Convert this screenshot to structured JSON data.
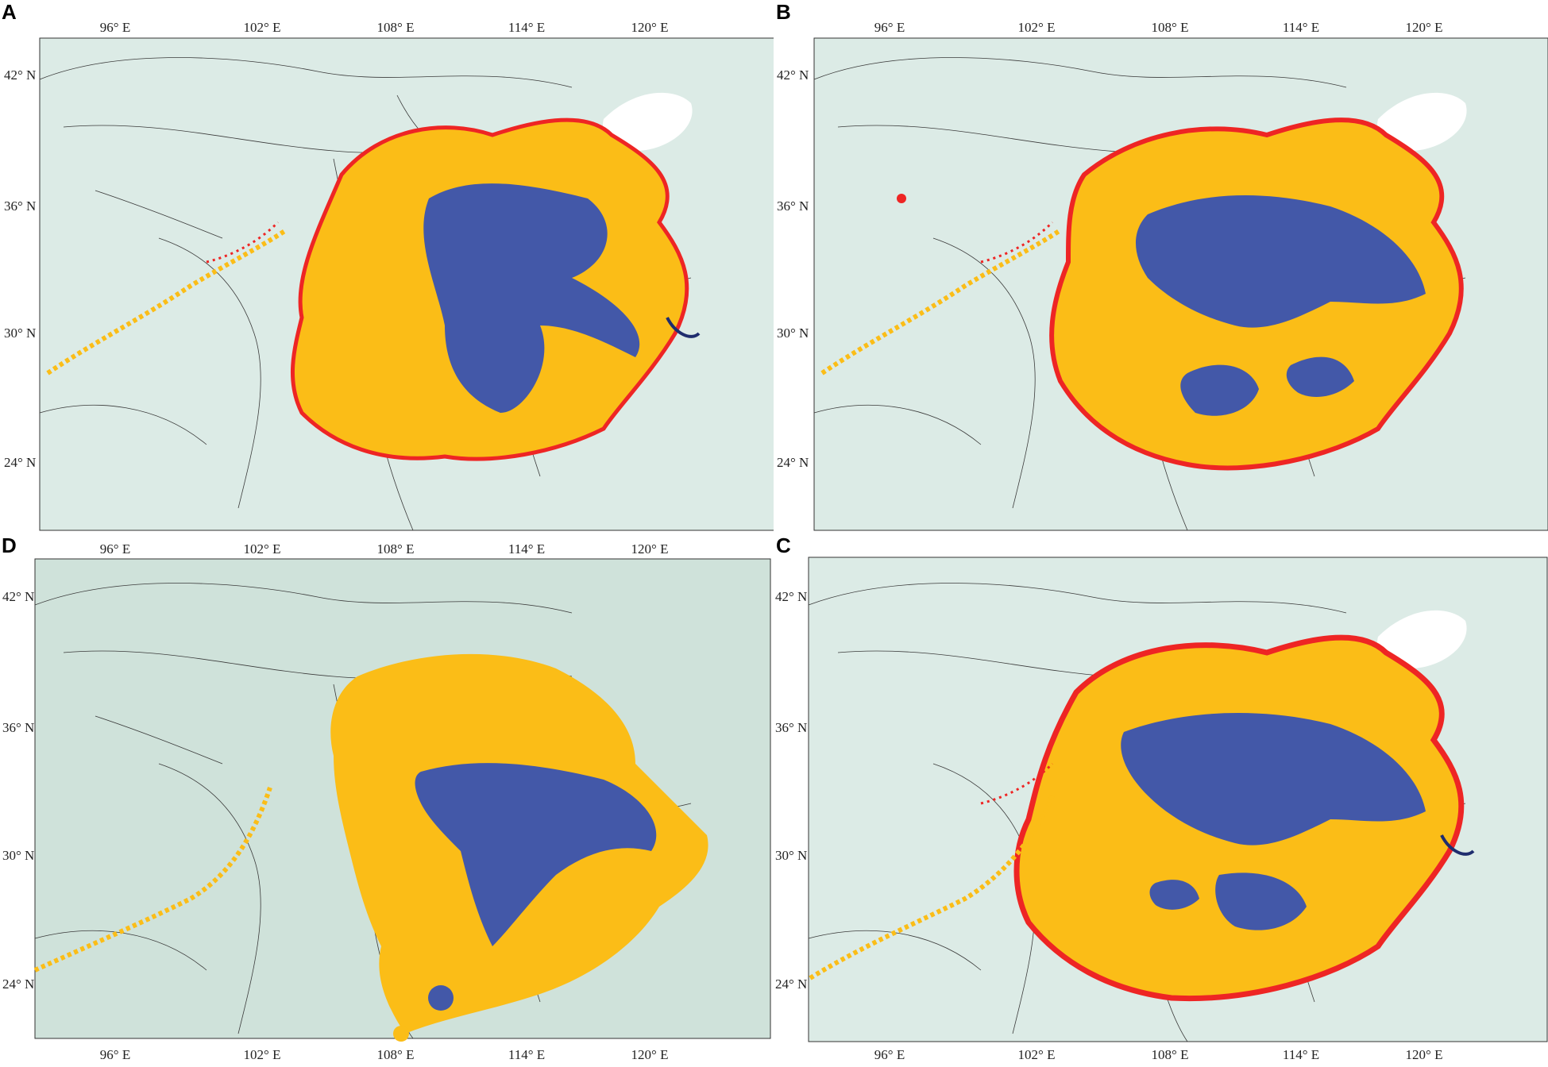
{
  "figure": {
    "colors": {
      "background": "#dcebe6",
      "background_alt": "#cfe2da",
      "sea": "#ffffff",
      "boundary": "#3a3a3a",
      "yellow": "#fbbd17",
      "red": "#ee2524",
      "blue": "#4358a8",
      "dark_blue": "#1f2d6e"
    },
    "panels": [
      {
        "id": "A",
        "letter": "A",
        "x_ticks": [
          "96° E",
          "102° E",
          "108° E",
          "114° E",
          "120° E"
        ],
        "y_ticks": [
          "42° N",
          "36° N",
          "30° N",
          "24° N"
        ],
        "tick_side_x": "top",
        "tick_side_y": "left",
        "habitat_classes": [
          "red",
          "yellow",
          "blue"
        ]
      },
      {
        "id": "B",
        "letter": "B",
        "x_ticks": [
          "96° E",
          "102° E",
          "108° E",
          "114° E",
          "120° E"
        ],
        "y_ticks": [
          "42° N",
          "36° N",
          "30° N",
          "24° N"
        ],
        "tick_side_x": "top",
        "tick_side_y": "left",
        "habitat_classes": [
          "red",
          "yellow",
          "blue"
        ]
      },
      {
        "id": "D",
        "letter": "D",
        "x_ticks": [
          "96° E",
          "102° E",
          "108° E",
          "114° E",
          "120° E"
        ],
        "y_ticks": [
          "42° N",
          "36° N",
          "30° N",
          "24° N"
        ],
        "tick_side_x": "top+bottom",
        "tick_side_y": "left",
        "habitat_classes": [
          "red",
          "yellow",
          "blue"
        ]
      },
      {
        "id": "C",
        "letter": "C",
        "x_ticks": [
          "96° E",
          "102° E",
          "108° E",
          "114° E",
          "120° E"
        ],
        "y_ticks": [
          "42° N",
          "36° N",
          "30° N",
          "24° N"
        ],
        "tick_side_x": "bottom",
        "tick_side_y": "left",
        "habitat_classes": [
          "red",
          "yellow",
          "blue"
        ]
      }
    ]
  }
}
